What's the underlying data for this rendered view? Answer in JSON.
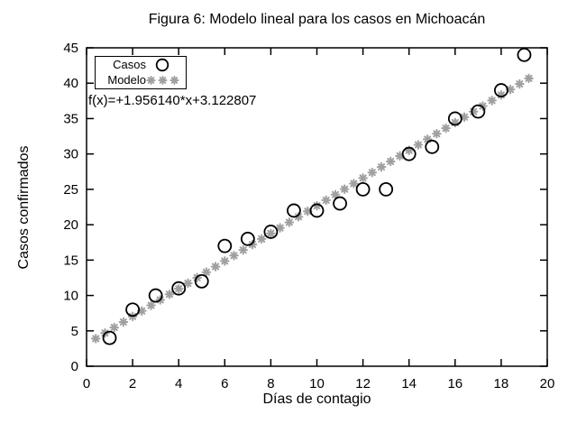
{
  "chart_data": {
    "type": "scatter",
    "title": "Figura 6: Modelo lineal para los casos en Michoacán",
    "xlabel": "Días de contagio",
    "ylabel": "Casos confirmados",
    "xlim": [
      0,
      20
    ],
    "ylim": [
      0,
      45
    ],
    "xticks": [
      0,
      2,
      4,
      6,
      8,
      10,
      12,
      14,
      16,
      18,
      20
    ],
    "yticks": [
      0,
      5,
      10,
      15,
      20,
      25,
      30,
      35,
      40,
      45
    ],
    "grid": false,
    "legend_position": "top-left",
    "annotation": "f(x)=+1.956140*x+3.122807",
    "colors": {
      "casos": "#000000",
      "modelo": "#a0a0a0"
    },
    "series": [
      {
        "name": "Casos",
        "marker": "open-circle",
        "color": "#000000",
        "x": [
          1,
          2,
          3,
          4,
          5,
          6,
          7,
          8,
          9,
          10,
          11,
          12,
          13,
          14,
          15,
          16,
          17,
          18,
          19
        ],
        "y": [
          4,
          8,
          10,
          11,
          12,
          17,
          18,
          19,
          22,
          22,
          23,
          25,
          25,
          30,
          31,
          35,
          36,
          39,
          44
        ]
      },
      {
        "name": "Modelo",
        "marker": "asterisk",
        "color": "#a0a0a0",
        "slope": 1.95614,
        "intercept": 3.122807,
        "x_start": 0.4,
        "x_step": 0.4,
        "x_end": 19.2
      }
    ],
    "legend": [
      {
        "label": "Casos"
      },
      {
        "label": "Modelo"
      }
    ]
  }
}
